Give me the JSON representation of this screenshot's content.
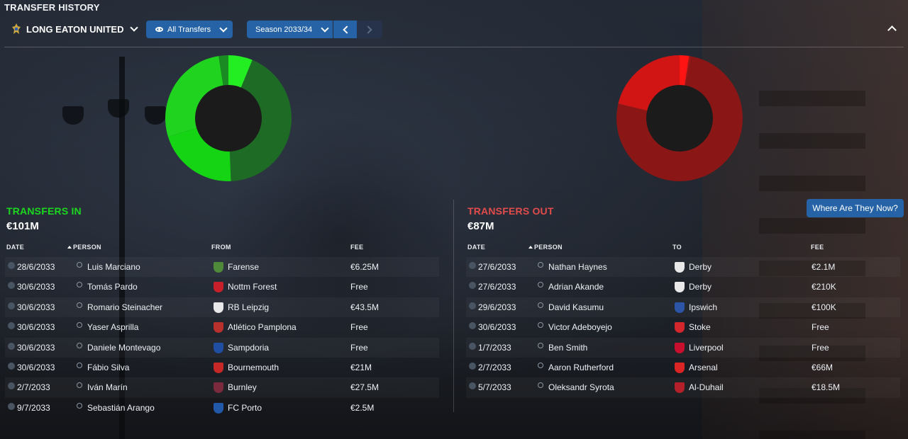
{
  "header": {
    "title": "TRANSFER HISTORY",
    "club": "LONG EATON UNITED",
    "filter_label": "All Transfers",
    "season_label": "Season 2033/34"
  },
  "colors": {
    "in_accent": "#1bd81e",
    "out_accent": "#e44b4b",
    "button": "#2563a6"
  },
  "transfers_in": {
    "label": "TRANSFERS IN",
    "total": "€101M",
    "columns": {
      "date": "DATE",
      "person": "PERSON",
      "from": "FROM",
      "fee": "FEE"
    },
    "rows": [
      {
        "date": "28/6/2033",
        "person": "Luis Marciano",
        "club": "Farense",
        "fee": "€6.25M",
        "crest": "#4f8a3a"
      },
      {
        "date": "30/6/2033",
        "person": "Tomás Pardo",
        "club": "Nottm Forest",
        "fee": "Free",
        "crest": "#c8202a"
      },
      {
        "date": "30/6/2033",
        "person": "Romario Steinacher",
        "club": "RB Leipzig",
        "fee": "€43.5M",
        "crest": "#e8e8ea"
      },
      {
        "date": "30/6/2033",
        "person": "Yaser Asprilla",
        "club": "Atlético Pamplona",
        "fee": "Free",
        "crest": "#b8312c"
      },
      {
        "date": "30/6/2033",
        "person": "Daniele Montevago",
        "club": "Sampdoria",
        "fee": "Free",
        "crest": "#1f4ea3"
      },
      {
        "date": "30/6/2033",
        "person": "Fábio Silva",
        "club": "Bournemouth",
        "fee": "€21M",
        "crest": "#c62828"
      },
      {
        "date": "2/7/2033",
        "person": "Iván Marín",
        "club": "Burnley",
        "fee": "€27.5M",
        "crest": "#7b2a3d"
      },
      {
        "date": "9/7/2033",
        "person": "Sebastián Arango",
        "club": "FC Porto",
        "fee": "€2.5M",
        "crest": "#2158a8"
      }
    ]
  },
  "transfers_out": {
    "label": "TRANSFERS OUT",
    "total": "€87M",
    "columns": {
      "date": "DATE",
      "person": "PERSON",
      "to": "TO",
      "fee": "FEE"
    },
    "rows": [
      {
        "date": "27/6/2033",
        "person": "Nathan Haynes",
        "club": "Derby",
        "fee": "€2.1M",
        "crest": "#e9e9e9"
      },
      {
        "date": "27/6/2033",
        "person": "Adrian Akande",
        "club": "Derby",
        "fee": "€210K",
        "crest": "#e9e9e9"
      },
      {
        "date": "29/6/2033",
        "person": "David Kasumu",
        "club": "Ipswich",
        "fee": "€100K",
        "crest": "#2c55a8"
      },
      {
        "date": "30/6/2033",
        "person": "Victor Adeboyejo",
        "club": "Stoke",
        "fee": "Free",
        "crest": "#d3262d"
      },
      {
        "date": "1/7/2033",
        "person": "Ben Smith",
        "club": "Liverpool",
        "fee": "Free",
        "crest": "#c8102e"
      },
      {
        "date": "2/7/2033",
        "person": "Aaron Rutherford",
        "club": "Arsenal",
        "fee": "€66M",
        "crest": "#db2424"
      },
      {
        "date": "5/7/2033",
        "person": "Oleksandr Syrota",
        "club": "Al-Duhail",
        "fee": "€18.5M",
        "crest": "#b3202a"
      }
    ]
  },
  "where_button": "Where Are They Now?"
}
